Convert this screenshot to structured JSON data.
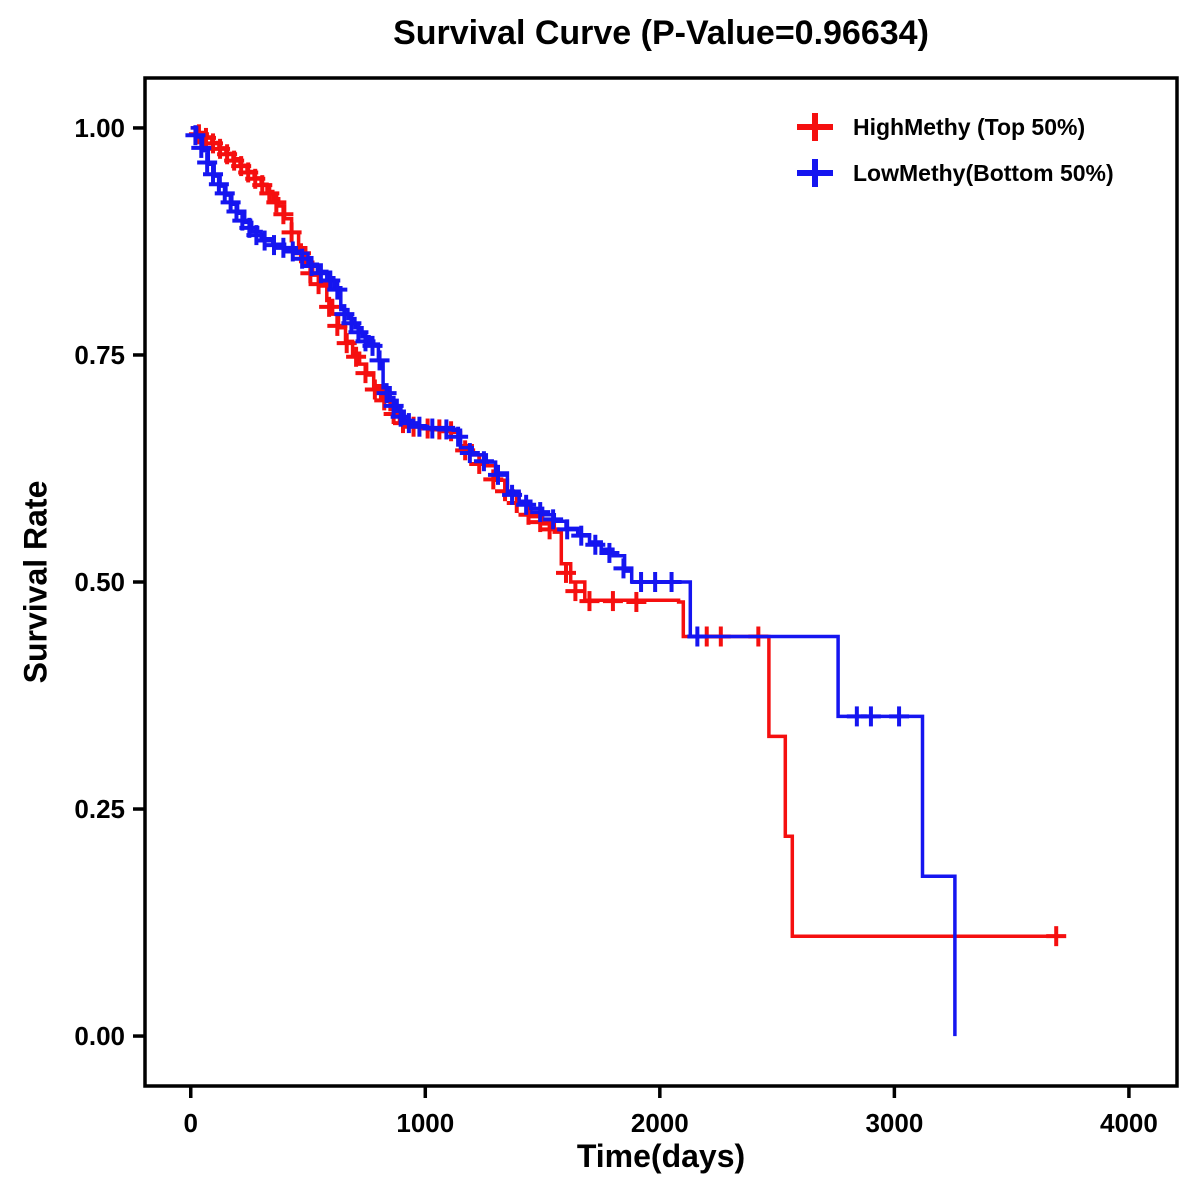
{
  "chart_data": {
    "type": "line",
    "subtype": "kaplan-meier-step",
    "title": "Survival Curve (P-Value=0.96634)",
    "xlabel": "Time(days)",
    "ylabel": "Survival Rate",
    "xlim": [
      -195,
      4205
    ],
    "ylim": [
      -0.055,
      1.055
    ],
    "grid": false,
    "frame_color": "#000000",
    "background": "#ffffff",
    "legend_position": "top-right-inside",
    "x_ticks": [
      {
        "value": 0,
        "label": "0"
      },
      {
        "value": 1000,
        "label": "1000"
      },
      {
        "value": 2000,
        "label": "2000"
      },
      {
        "value": 3000,
        "label": "3000"
      },
      {
        "value": 4000,
        "label": "4000"
      }
    ],
    "y_ticks": [
      {
        "value": 0.0,
        "label": "0.00"
      },
      {
        "value": 0.25,
        "label": "0.25"
      },
      {
        "value": 0.5,
        "label": "0.50"
      },
      {
        "value": 0.75,
        "label": "0.75"
      },
      {
        "value": 1.0,
        "label": "1.00"
      }
    ],
    "series": [
      {
        "id": "highmethy",
        "name": "HighMethy (Top 50%)",
        "color": "#f50f0f",
        "steps": [
          [
            0,
            1.0
          ],
          [
            30,
            0.995
          ],
          [
            60,
            0.99
          ],
          [
            90,
            0.984
          ],
          [
            120,
            0.978
          ],
          [
            150,
            0.972
          ],
          [
            180,
            0.966
          ],
          [
            210,
            0.959
          ],
          [
            240,
            0.952
          ],
          [
            270,
            0.945
          ],
          [
            300,
            0.938
          ],
          [
            325,
            0.93
          ],
          [
            350,
            0.922
          ],
          [
            375,
            0.914
          ],
          [
            400,
            0.9
          ],
          [
            430,
            0.885
          ],
          [
            460,
            0.868
          ],
          [
            490,
            0.852
          ],
          [
            520,
            0.838
          ],
          [
            550,
            0.826
          ],
          [
            580,
            0.81
          ],
          [
            605,
            0.795
          ],
          [
            630,
            0.78
          ],
          [
            660,
            0.765
          ],
          [
            690,
            0.752
          ],
          [
            720,
            0.74
          ],
          [
            750,
            0.728
          ],
          [
            780,
            0.716
          ],
          [
            810,
            0.704
          ],
          [
            850,
            0.69
          ],
          [
            890,
            0.678
          ],
          [
            930,
            0.672
          ],
          [
            1000,
            0.669
          ],
          [
            1120,
            0.665
          ],
          [
            1150,
            0.65
          ],
          [
            1200,
            0.64
          ],
          [
            1250,
            0.628
          ],
          [
            1300,
            0.612
          ],
          [
            1350,
            0.598
          ],
          [
            1400,
            0.585
          ],
          [
            1450,
            0.572
          ],
          [
            1500,
            0.564
          ],
          [
            1550,
            0.555
          ],
          [
            1580,
            0.52
          ],
          [
            1620,
            0.5
          ],
          [
            1680,
            0.48
          ],
          [
            2080,
            0.478
          ],
          [
            2100,
            0.44
          ],
          [
            2450,
            0.44
          ],
          [
            2465,
            0.33
          ],
          [
            2520,
            0.33
          ],
          [
            2535,
            0.22
          ],
          [
            2550,
            0.22
          ],
          [
            2565,
            0.11
          ],
          [
            3700,
            0.11
          ]
        ],
        "censors": [
          [
            35,
            0.993
          ],
          [
            65,
            0.989
          ],
          [
            95,
            0.983
          ],
          [
            125,
            0.977
          ],
          [
            155,
            0.971
          ],
          [
            185,
            0.964
          ],
          [
            215,
            0.958
          ],
          [
            245,
            0.951
          ],
          [
            275,
            0.944
          ],
          [
            305,
            0.937
          ],
          [
            335,
            0.928
          ],
          [
            365,
            0.918
          ],
          [
            395,
            0.905
          ],
          [
            430,
            0.885
          ],
          [
            470,
            0.862
          ],
          [
            510,
            0.84
          ],
          [
            545,
            0.828
          ],
          [
            590,
            0.803
          ],
          [
            625,
            0.782
          ],
          [
            665,
            0.763
          ],
          [
            705,
            0.748
          ],
          [
            745,
            0.73
          ],
          [
            785,
            0.712
          ],
          [
            825,
            0.7
          ],
          [
            865,
            0.685
          ],
          [
            905,
            0.675
          ],
          [
            950,
            0.671
          ],
          [
            1010,
            0.669
          ],
          [
            1060,
            0.668
          ],
          [
            1110,
            0.666
          ],
          [
            1170,
            0.645
          ],
          [
            1230,
            0.63
          ],
          [
            1290,
            0.613
          ],
          [
            1340,
            0.6
          ],
          [
            1390,
            0.587
          ],
          [
            1440,
            0.574
          ],
          [
            1490,
            0.566
          ],
          [
            1530,
            0.558
          ],
          [
            1600,
            0.51
          ],
          [
            1640,
            0.49
          ],
          [
            1700,
            0.479
          ],
          [
            1800,
            0.479
          ],
          [
            1900,
            0.478
          ],
          [
            2200,
            0.44
          ],
          [
            2260,
            0.44
          ],
          [
            2420,
            0.44
          ],
          [
            3690,
            0.11
          ]
        ]
      },
      {
        "id": "lowmethy",
        "name": "LowMethy(Bottom 50%)",
        "color": "#1515f0",
        "steps": [
          [
            0,
            1.0
          ],
          [
            25,
            0.99
          ],
          [
            50,
            0.975
          ],
          [
            75,
            0.96
          ],
          [
            100,
            0.947
          ],
          [
            125,
            0.936
          ],
          [
            150,
            0.926
          ],
          [
            175,
            0.916
          ],
          [
            200,
            0.906
          ],
          [
            230,
            0.896
          ],
          [
            260,
            0.886
          ],
          [
            300,
            0.878
          ],
          [
            350,
            0.872
          ],
          [
            400,
            0.868
          ],
          [
            450,
            0.862
          ],
          [
            500,
            0.85
          ],
          [
            540,
            0.842
          ],
          [
            580,
            0.835
          ],
          [
            610,
            0.824
          ],
          [
            640,
            0.8
          ],
          [
            670,
            0.79
          ],
          [
            700,
            0.78
          ],
          [
            730,
            0.77
          ],
          [
            760,
            0.762
          ],
          [
            800,
            0.744
          ],
          [
            820,
            0.714
          ],
          [
            850,
            0.7
          ],
          [
            880,
            0.688
          ],
          [
            910,
            0.678
          ],
          [
            950,
            0.672
          ],
          [
            1000,
            0.67
          ],
          [
            1120,
            0.667
          ],
          [
            1150,
            0.648
          ],
          [
            1200,
            0.64
          ],
          [
            1260,
            0.632
          ],
          [
            1300,
            0.62
          ],
          [
            1350,
            0.6
          ],
          [
            1400,
            0.589
          ],
          [
            1450,
            0.581
          ],
          [
            1500,
            0.574
          ],
          [
            1550,
            0.567
          ],
          [
            1600,
            0.559
          ],
          [
            1650,
            0.552
          ],
          [
            1700,
            0.544
          ],
          [
            1750,
            0.536
          ],
          [
            1800,
            0.529
          ],
          [
            1850,
            0.512
          ],
          [
            1880,
            0.5
          ],
          [
            2100,
            0.5
          ],
          [
            2130,
            0.44
          ],
          [
            2700,
            0.44
          ],
          [
            2760,
            0.352
          ],
          [
            3100,
            0.352
          ],
          [
            3120,
            0.176
          ],
          [
            3250,
            0.176
          ],
          [
            3258,
            0.0
          ]
        ],
        "censors": [
          [
            20,
            0.992
          ],
          [
            45,
            0.978
          ],
          [
            70,
            0.962
          ],
          [
            95,
            0.949
          ],
          [
            120,
            0.938
          ],
          [
            145,
            0.928
          ],
          [
            170,
            0.918
          ],
          [
            195,
            0.908
          ],
          [
            220,
            0.898
          ],
          [
            250,
            0.89
          ],
          [
            280,
            0.882
          ],
          [
            315,
            0.876
          ],
          [
            355,
            0.871
          ],
          [
            395,
            0.868
          ],
          [
            435,
            0.864
          ],
          [
            475,
            0.856
          ],
          [
            515,
            0.848
          ],
          [
            555,
            0.84
          ],
          [
            595,
            0.832
          ],
          [
            625,
            0.822
          ],
          [
            655,
            0.795
          ],
          [
            685,
            0.785
          ],
          [
            715,
            0.775
          ],
          [
            745,
            0.765
          ],
          [
            775,
            0.76
          ],
          [
            805,
            0.744
          ],
          [
            835,
            0.708
          ],
          [
            865,
            0.694
          ],
          [
            895,
            0.682
          ],
          [
            930,
            0.675
          ],
          [
            975,
            0.671
          ],
          [
            1030,
            0.669
          ],
          [
            1090,
            0.668
          ],
          [
            1140,
            0.66
          ],
          [
            1190,
            0.642
          ],
          [
            1250,
            0.633
          ],
          [
            1310,
            0.618
          ],
          [
            1370,
            0.596
          ],
          [
            1430,
            0.585
          ],
          [
            1490,
            0.577
          ],
          [
            1545,
            0.569
          ],
          [
            1605,
            0.558
          ],
          [
            1665,
            0.551
          ],
          [
            1725,
            0.541
          ],
          [
            1785,
            0.532
          ],
          [
            1845,
            0.515
          ],
          [
            1920,
            0.5
          ],
          [
            1980,
            0.5
          ],
          [
            2050,
            0.5
          ],
          [
            2160,
            0.44
          ],
          [
            2840,
            0.352
          ],
          [
            2900,
            0.352
          ],
          [
            3020,
            0.352
          ]
        ]
      }
    ]
  }
}
